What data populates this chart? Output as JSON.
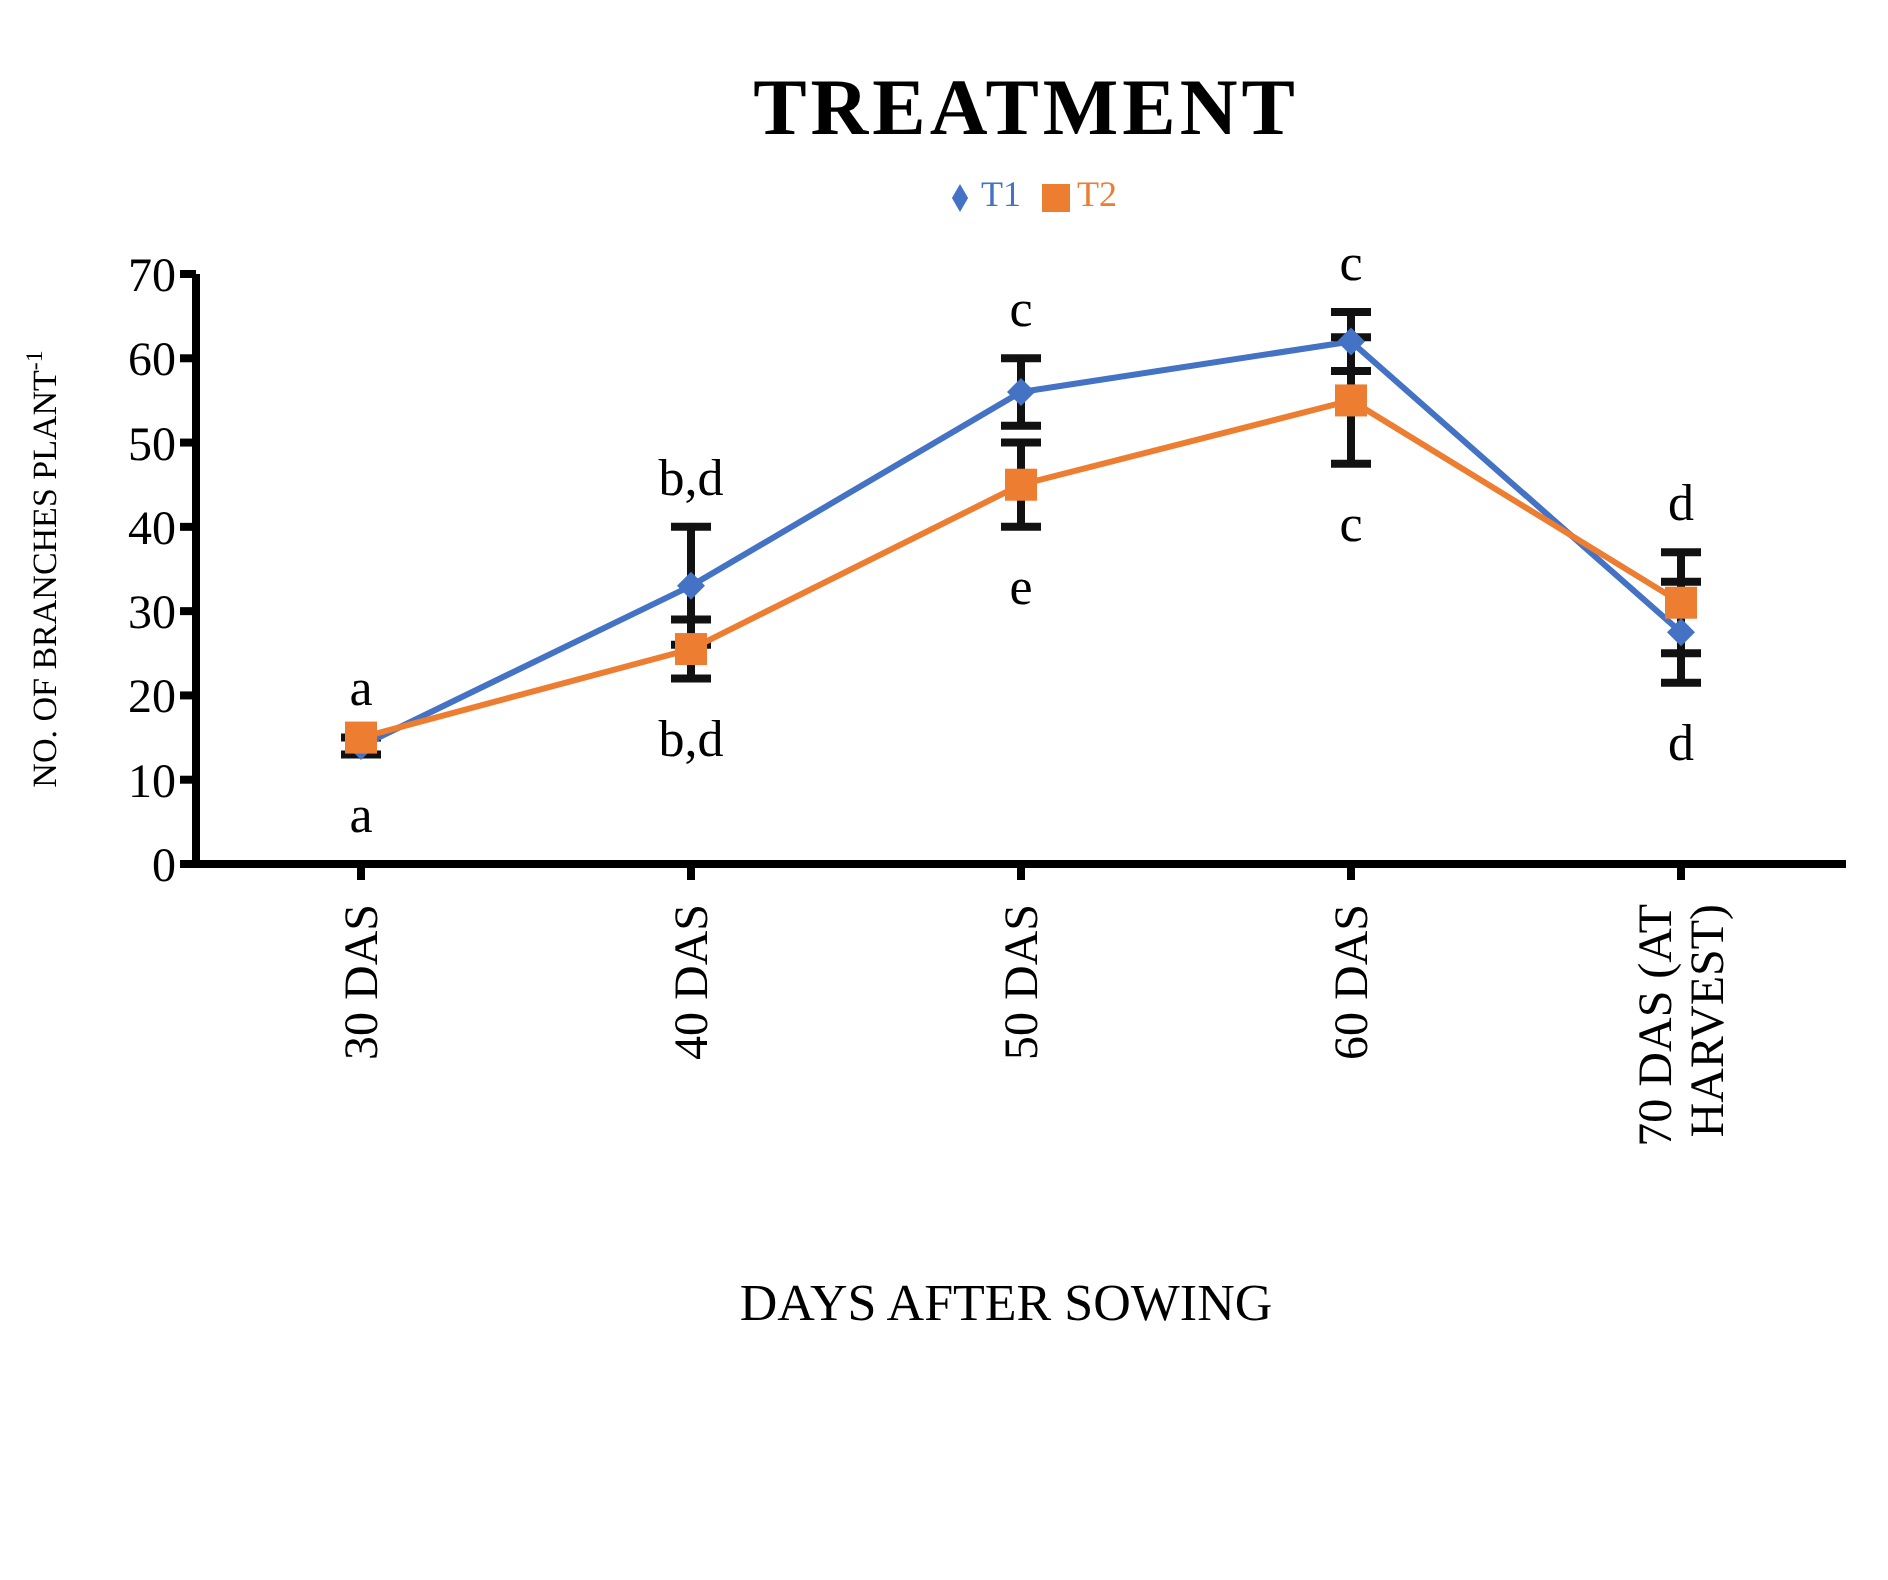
{
  "chart_data": {
    "type": "line",
    "title": "TREATMENT",
    "xlabel": "DAYS AFTER SOWING",
    "ylabel": "NO. OF BRANCHES PLANT$^{-1}$",
    "categories": [
      "30 DAS",
      "40 DAS",
      "50 DAS",
      "60 DAS",
      "70 DAS (AT HARVEST)"
    ],
    "series": [
      {
        "name": "T1",
        "color": "#4472c4",
        "marker": "diamond",
        "values": [
          14,
          33,
          56,
          62,
          27.5
        ],
        "errors": [
          1,
          7,
          4,
          3.5,
          6
        ]
      },
      {
        "name": "T2",
        "color": "#ed7d31",
        "marker": "square",
        "values": [
          15,
          25.5,
          45,
          55,
          31
        ],
        "errors": [
          null,
          3.5,
          5,
          7.5,
          6
        ]
      }
    ],
    "ylim": [
      0,
      70
    ],
    "yticks": [
      0,
      10,
      20,
      30,
      40,
      50,
      60,
      70
    ],
    "grid": false,
    "legend": "top",
    "annotations": [
      "a",
      "a",
      "b,d",
      "b,d",
      "c",
      "e",
      "c",
      "c",
      "d",
      "d"
    ]
  }
}
